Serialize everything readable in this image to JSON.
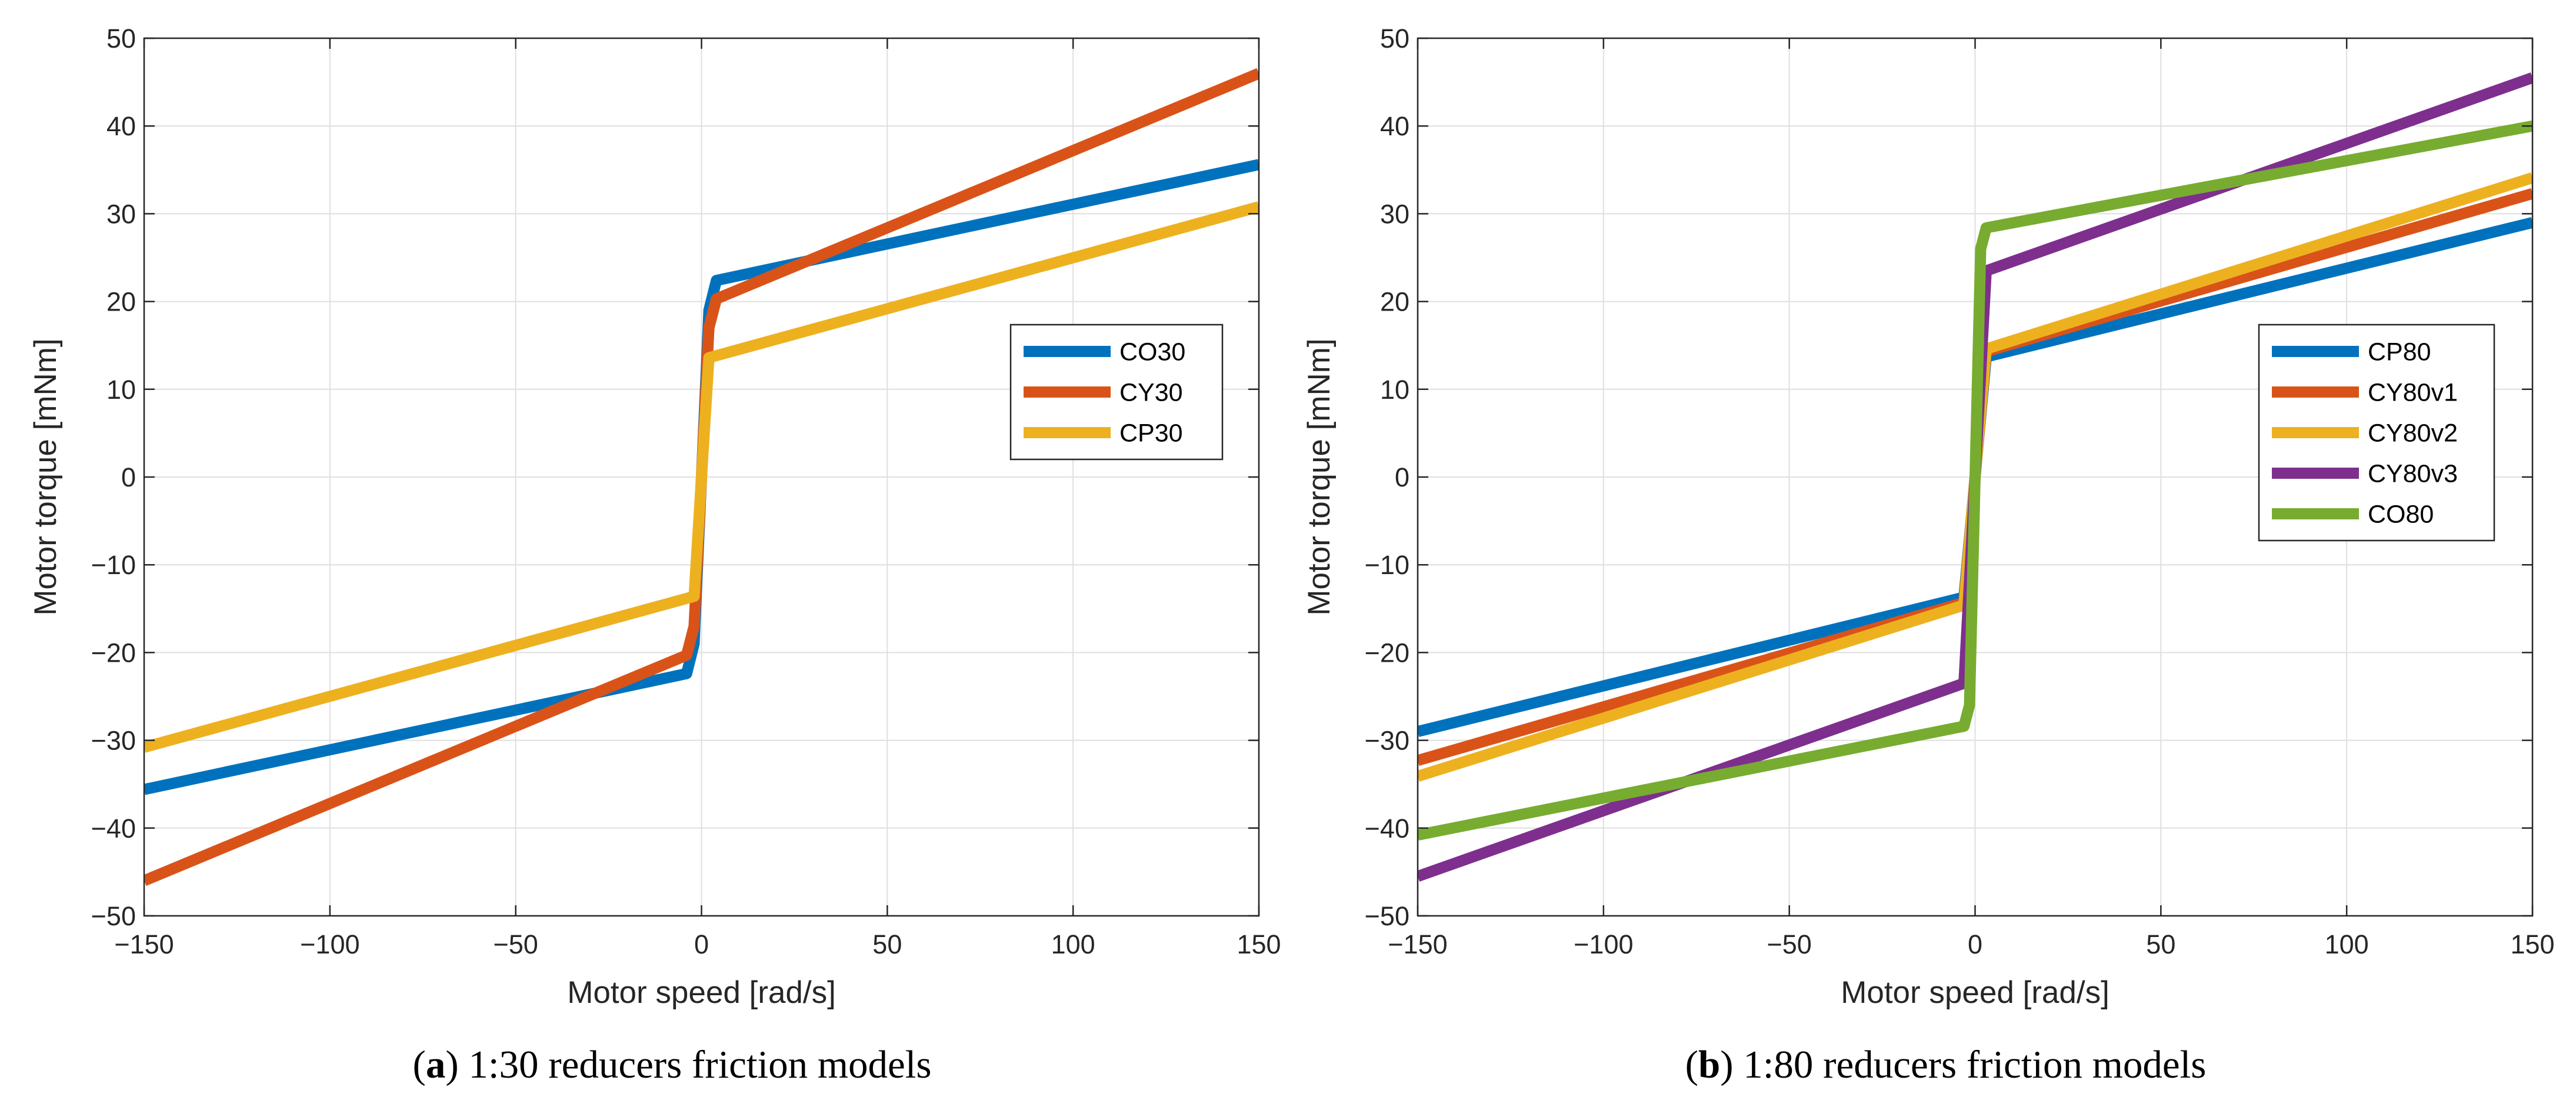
{
  "chart_data": [
    {
      "type": "line",
      "panel_label": "a",
      "caption": "1:30 reducers friction models",
      "xlabel": "Motor speed [rad/s]",
      "ylabel": "Motor torque [mNm]",
      "xlim": [
        -150,
        150
      ],
      "ylim": [
        -50,
        50
      ],
      "xticks": [
        -150,
        -100,
        -50,
        0,
        50,
        100,
        150
      ],
      "yticks": [
        -50,
        -40,
        -30,
        -20,
        -10,
        0,
        10,
        20,
        30,
        40,
        50
      ],
      "grid": true,
      "legend_position": "right",
      "series": [
        {
          "name": "CO30",
          "color": "#0072BD",
          "x": [
            -150,
            -4,
            -2,
            0,
            2,
            4,
            150
          ],
          "y": [
            -35.6,
            -22.4,
            -19,
            0,
            19,
            22.4,
            35.6
          ]
        },
        {
          "name": "CY30",
          "color": "#D95319",
          "x": [
            -150,
            -4,
            -2,
            0,
            2,
            4,
            150
          ],
          "y": [
            -46.0,
            -20.3,
            -17,
            0,
            17,
            20.3,
            46.0
          ]
        },
        {
          "name": "CP30",
          "color": "#EDB120",
          "x": [
            -150,
            -2,
            0,
            2,
            150
          ],
          "y": [
            -30.8,
            -13.6,
            0,
            13.6,
            30.8
          ]
        }
      ]
    },
    {
      "type": "line",
      "panel_label": "b",
      "caption": "1:80 reducers friction models",
      "xlabel": "Motor speed [rad/s]",
      "ylabel": "Motor torque [mNm]",
      "xlim": [
        -150,
        150
      ],
      "ylim": [
        -50,
        50
      ],
      "xticks": [
        -150,
        -100,
        -50,
        0,
        50,
        100,
        150
      ],
      "yticks": [
        -50,
        -40,
        -30,
        -20,
        -10,
        0,
        10,
        20,
        30,
        40,
        50
      ],
      "grid": true,
      "legend_position": "right",
      "series": [
        {
          "name": "CP80",
          "color": "#0072BD",
          "x": [
            -150,
            -3,
            0,
            3,
            150
          ],
          "y": [
            -29.0,
            -13.7,
            0,
            13.7,
            29.0
          ]
        },
        {
          "name": "CY80v1",
          "color": "#D95319",
          "x": [
            -150,
            -3,
            0,
            3,
            150
          ],
          "y": [
            -32.3,
            -14.3,
            0,
            14.3,
            32.3
          ]
        },
        {
          "name": "CY80v2",
          "color": "#EDB120",
          "x": [
            -150,
            -3,
            0,
            3,
            150
          ],
          "y": [
            -34.1,
            -14.6,
            0,
            14.6,
            34.1
          ]
        },
        {
          "name": "CY80v3",
          "color": "#7E2F8E",
          "x": [
            -150,
            -3,
            0,
            3,
            150
          ],
          "y": [
            -45.5,
            -23.5,
            0,
            23.5,
            45.5
          ]
        },
        {
          "name": "CO80",
          "color": "#77AC30",
          "x": [
            -150,
            -3,
            -1.5,
            0,
            1.5,
            3,
            150
          ],
          "y": [
            -40.8,
            -28.4,
            -26,
            0,
            26,
            28.4,
            40.0
          ]
        }
      ]
    }
  ]
}
